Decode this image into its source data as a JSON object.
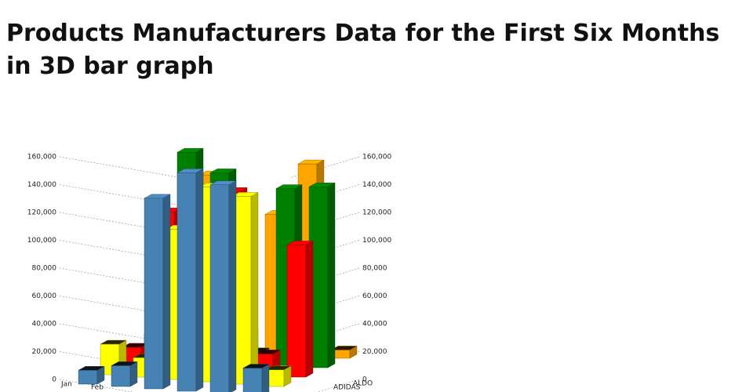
{
  "chart_data": {
    "type": "bar3d",
    "title": "Products Manufacturers Data for the First Six Months in 3D bar graph",
    "categories": [
      "Jan",
      "Feb",
      null,
      null,
      null,
      null
    ],
    "series": [
      {
        "name": "ALDO",
        "color": "#ffa500",
        "values": [
          12000,
          125000,
          14000,
          100000,
          138000,
          6000
        ]
      },
      {
        "name": "ADIDAS",
        "color": "#008000",
        "values": [
          16000,
          148000,
          135000,
          8000,
          127000,
          130000
        ]
      },
      {
        "name": null,
        "color": "#ff0000",
        "values": [
          13000,
          112000,
          127000,
          130000,
          15000,
          95000
        ]
      },
      {
        "name": null,
        "color": "#ffff00",
        "values": [
          22000,
          14000,
          108000,
          140000,
          135000,
          12000
        ]
      },
      {
        "name": null,
        "color": "#4682b4",
        "values": [
          10000,
          15000,
          137000,
          157000,
          150000,
          20000
        ]
      }
    ],
    "ylim": [
      0,
      160000
    ],
    "yticks": [
      0,
      {
        "value": 20000,
        "label": "20,000"
      },
      {
        "value": 40000,
        "label": "40,000"
      },
      {
        "value": 60000,
        "label": "60,000"
      },
      {
        "value": 80000,
        "label": "80,000"
      },
      {
        "value": 100000,
        "label": "100,000"
      },
      {
        "value": 120000,
        "label": "120,000"
      },
      {
        "value": 140000,
        "label": "140,000"
      },
      {
        "value": 160000,
        "label": "160,000"
      }
    ],
    "grid": true
  }
}
